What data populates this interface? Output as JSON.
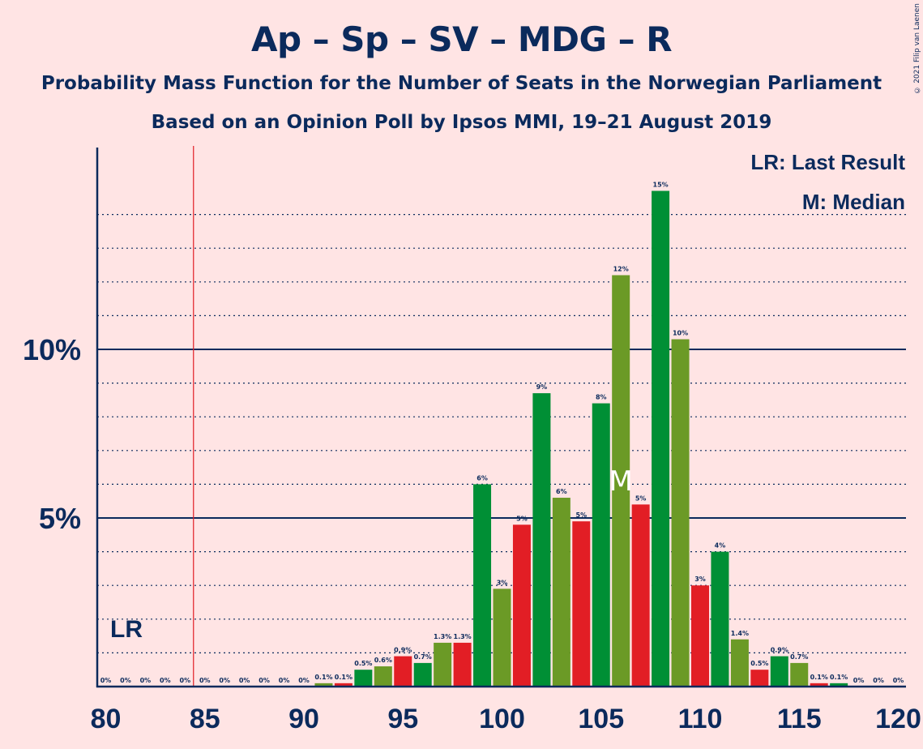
{
  "header": {
    "title": "Ap – Sp – SV – MDG – R",
    "subtitle1": "Probability Mass Function for the Number of Seats in the Norwegian Parliament",
    "subtitle2": "Based on an Opinion Poll by Ipsos MMI, 19–21 August 2019",
    "copyright": "© 2021 Filip van Laenen"
  },
  "chart_data": {
    "type": "bar",
    "x": [
      80,
      81,
      82,
      83,
      84,
      85,
      86,
      87,
      88,
      89,
      90,
      91,
      92,
      93,
      94,
      95,
      96,
      97,
      98,
      99,
      100,
      101,
      102,
      103,
      104,
      105,
      106,
      107,
      108,
      109,
      110,
      111,
      112,
      113,
      114,
      115,
      116,
      117,
      118,
      119,
      120
    ],
    "values": [
      0,
      0,
      0,
      0,
      0,
      0,
      0,
      0,
      0,
      0,
      0,
      0.1,
      0.1,
      0.5,
      0.6,
      0.9,
      0.7,
      1.3,
      1.3,
      6.0,
      2.9,
      4.8,
      8.7,
      5.6,
      4.9,
      8.4,
      12.2,
      5.4,
      14.7,
      10.3,
      3.0,
      4.0,
      1.4,
      0.5,
      0.9,
      0.7,
      0.1,
      0.1,
      0,
      0,
      0
    ],
    "labels": [
      "0%",
      "0%",
      "0%",
      "0%",
      "0%",
      "0%",
      "0%",
      "0%",
      "0%",
      "0%",
      "0%",
      "0.1%",
      "0.1%",
      "0.5%",
      "0.6%",
      "0.9%",
      "0.7%",
      "1.3%",
      "1.3%",
      "6%",
      "3%",
      "5%",
      "9%",
      "6%",
      "5%",
      "8%",
      "12%",
      "5%",
      "15%",
      "10%",
      "3%",
      "4%",
      "1.4%",
      "0.5%",
      "0.9%",
      "0.7%",
      "0.1%",
      "0.1%",
      "0%",
      "0%",
      "0%"
    ],
    "bar_colors": [
      "#E21E25",
      "#008F35",
      "#6B9A26"
    ],
    "xlim": [
      80,
      120
    ],
    "ylim": [
      0,
      16
    ],
    "x_ticks": [
      80,
      85,
      90,
      95,
      100,
      105,
      110,
      115,
      120
    ],
    "y_ticks": [
      {
        "value": 5,
        "label": "5%"
      },
      {
        "value": 10,
        "label": "10%"
      }
    ],
    "last_result": 85,
    "last_result_marker": "LR",
    "median": 106,
    "median_marker": "M",
    "legend": {
      "lr": "LR: Last Result",
      "m": "M: Median",
      "position": "top-right"
    },
    "grid": true
  }
}
